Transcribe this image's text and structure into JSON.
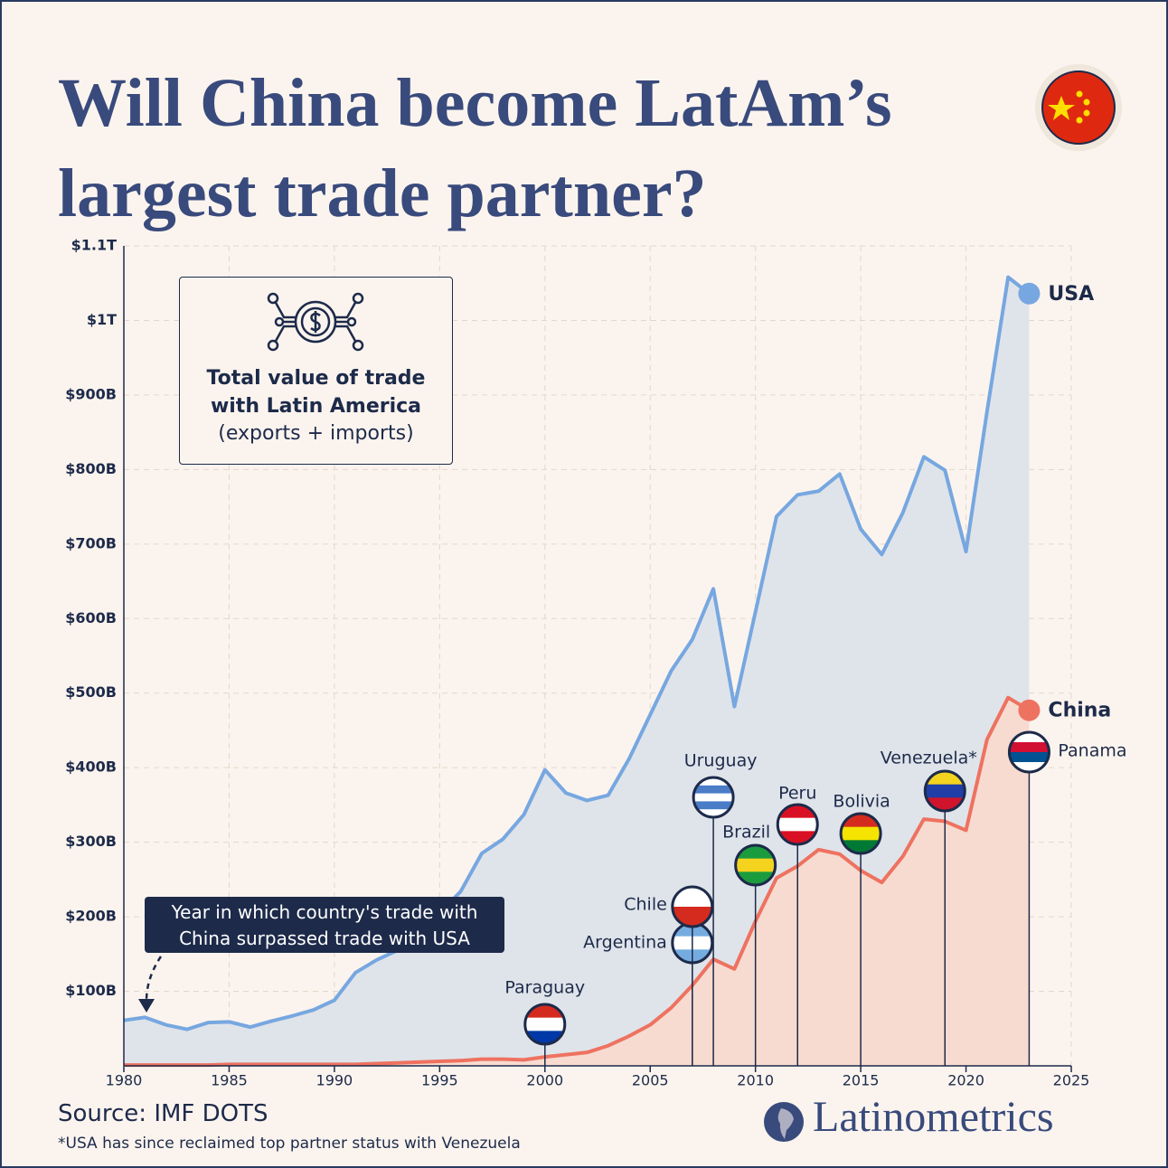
{
  "chart_data": {
    "type": "area-line",
    "title": "Will China become LatAm’s largest trade partner?",
    "info_title": "Total value of trade with Latin America",
    "info_subtitle": "(exports + imports)",
    "callout": "Year in which country's trade with China surpassed trade with USA",
    "source": "Source: IMF DOTS",
    "footnote": "*USA has since reclaimed top partner status with Venezuela",
    "brand": "Latinometrics",
    "xlim": [
      1980,
      2025
    ],
    "xticks": [
      1980,
      1985,
      1990,
      1995,
      2000,
      2005,
      2010,
      2015,
      2020,
      2025
    ],
    "ylim": [
      0,
      1100
    ],
    "yticks": [
      {
        "value": 100,
        "label": "$100B"
      },
      {
        "value": 200,
        "label": "$200B"
      },
      {
        "value": 300,
        "label": "$300B"
      },
      {
        "value": 400,
        "label": "$400B"
      },
      {
        "value": 500,
        "label": "$500B"
      },
      {
        "value": 600,
        "label": "$600B"
      },
      {
        "value": 700,
        "label": "$700B"
      },
      {
        "value": 800,
        "label": "$800B"
      },
      {
        "value": 900,
        "label": "$900B"
      },
      {
        "value": 1000,
        "label": "$1T"
      },
      {
        "value": 1100,
        "label": "$1.1T"
      }
    ],
    "grid": true,
    "x": [
      1980,
      1981,
      1982,
      1983,
      1984,
      1985,
      1986,
      1987,
      1988,
      1989,
      1990,
      1991,
      1992,
      1993,
      1994,
      1995,
      1996,
      1997,
      1998,
      1999,
      2000,
      2001,
      2002,
      2003,
      2004,
      2005,
      2006,
      2007,
      2008,
      2009,
      2010,
      2011,
      2012,
      2013,
      2014,
      2015,
      2016,
      2017,
      2018,
      2019,
      2020,
      2021,
      2022,
      2023
    ],
    "series": [
      {
        "name": "USA",
        "color": "#77a7e0",
        "fill": "#dfe4ea",
        "values": [
          61,
          65,
          55,
          49,
          58,
          59,
          52,
          60,
          67,
          75,
          88,
          125,
          142,
          155,
          173,
          205,
          234,
          285,
          304,
          337,
          397,
          366,
          356,
          363,
          412,
          471,
          530,
          572,
          640,
          482,
          609,
          737,
          766,
          771,
          794,
          720,
          686,
          742,
          817,
          799,
          690,
          878,
          1058,
          1036
        ]
      },
      {
        "name": "China",
        "color": "#ee7260",
        "fill": "#f9d9cd",
        "values": [
          1,
          1,
          1,
          1,
          1,
          2,
          2,
          2,
          2,
          2,
          2,
          2,
          3,
          4,
          5,
          6,
          7,
          9,
          9,
          8,
          12,
          15,
          18,
          27,
          40,
          55,
          78,
          108,
          143,
          130,
          194,
          252,
          268,
          290,
          284,
          262,
          246,
          281,
          331,
          328,
          316,
          438,
          494,
          477
        ]
      }
    ],
    "annotations": [
      {
        "label": "Paraguay",
        "x": 2000,
        "flag": [
          "#d52b1e",
          "#ffffff",
          "#0038a8"
        ]
      },
      {
        "label": "Argentina",
        "x": 2007,
        "flag": [
          "#74acdf",
          "#ffffff",
          "#74acdf"
        ]
      },
      {
        "label": "Chile",
        "x": 2007,
        "flag": [
          "#ffffff",
          "#d52b1e"
        ]
      },
      {
        "label": "Uruguay",
        "x": 2008,
        "flag": [
          "#ffffff",
          "#4a7cc7",
          "#ffffff",
          "#4a7cc7",
          "#ffffff"
        ]
      },
      {
        "label": "Brazil",
        "x": 2010,
        "flag": [
          "#1a9c3e",
          "#f4d31f",
          "#1a9c3e"
        ]
      },
      {
        "label": "Peru",
        "x": 2012,
        "flag": [
          "#d91023",
          "#ffffff",
          "#d91023"
        ]
      },
      {
        "label": "Bolivia",
        "x": 2015,
        "flag": [
          "#d52b1e",
          "#f4e400",
          "#007934"
        ]
      },
      {
        "label": "Venezuela*",
        "x": 2019,
        "flag": [
          "#f4d31f",
          "#1f3ea8",
          "#cf142b"
        ]
      },
      {
        "label": "Panama",
        "x": 2023,
        "flag": [
          "#ffffff",
          "#d21034",
          "#005293",
          "#ffffff"
        ]
      }
    ]
  }
}
